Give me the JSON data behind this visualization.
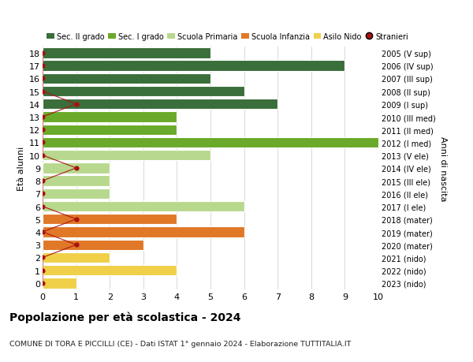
{
  "ages": [
    18,
    17,
    16,
    15,
    14,
    13,
    12,
    11,
    10,
    9,
    8,
    7,
    6,
    5,
    4,
    3,
    2,
    1,
    0
  ],
  "right_labels": [
    "2005 (V sup)",
    "2006 (IV sup)",
    "2007 (III sup)",
    "2008 (II sup)",
    "2009 (I sup)",
    "2010 (III med)",
    "2011 (II med)",
    "2012 (I med)",
    "2013 (V ele)",
    "2014 (IV ele)",
    "2015 (III ele)",
    "2016 (II ele)",
    "2017 (I ele)",
    "2018 (mater)",
    "2019 (mater)",
    "2020 (mater)",
    "2021 (nido)",
    "2022 (nido)",
    "2023 (nido)"
  ],
  "bar_values": [
    5,
    9,
    5,
    6,
    7,
    4,
    4,
    10,
    5,
    2,
    2,
    2,
    6,
    4,
    6,
    3,
    2,
    4,
    1
  ],
  "bar_colors": [
    "#3a6e3a",
    "#3a6e3a",
    "#3a6e3a",
    "#3a6e3a",
    "#3a6e3a",
    "#6aaa2a",
    "#6aaa2a",
    "#6aaa2a",
    "#b8d98d",
    "#b8d98d",
    "#b8d98d",
    "#b8d98d",
    "#b8d98d",
    "#e07828",
    "#e07828",
    "#e07828",
    "#f0d048",
    "#f0d048",
    "#f0d048"
  ],
  "stranieri_values": [
    0,
    0,
    0,
    0,
    1,
    0,
    0,
    0,
    0,
    1,
    0,
    0,
    0,
    1,
    0,
    1,
    0,
    0,
    0
  ],
  "stranieri_color": "#aa1111",
  "color_sec2": "#3a6e3a",
  "color_sec1": "#6aaa2a",
  "color_prim": "#b8d98d",
  "color_inf": "#e07828",
  "color_nido": "#f0d048",
  "legend_labels": [
    "Sec. II grado",
    "Sec. I grado",
    "Scuola Primaria",
    "Scuola Infanzia",
    "Asilo Nido",
    "Stranieri"
  ],
  "title": "Popolazione per età scolastica - 2024",
  "subtitle": "COMUNE DI TORA E PICCILLI (CE) - Dati ISTAT 1° gennaio 2024 - Elaborazione TUTTITALIA.IT",
  "ylabel_left": "Età alunni",
  "ylabel_right": "Anni di nascita",
  "xlim": [
    0,
    10
  ],
  "xticks": [
    0,
    1,
    2,
    3,
    4,
    5,
    6,
    7,
    8,
    9,
    10
  ],
  "background_color": "#ffffff",
  "grid_color": "#d8d8d8"
}
